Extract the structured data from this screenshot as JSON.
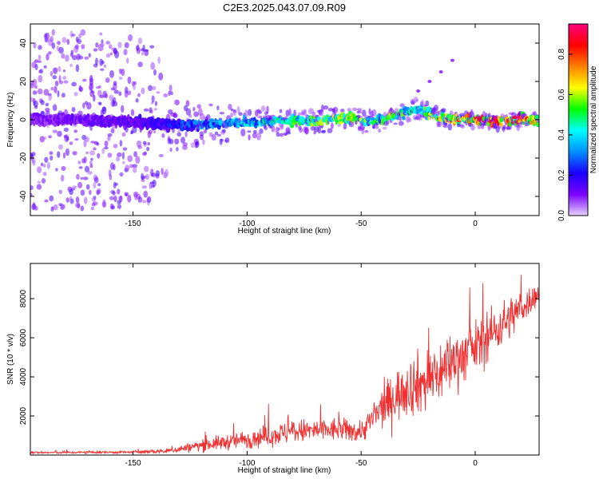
{
  "figure_title": "C2E3.2025.043.07.09.R09",
  "chart_data": [
    {
      "type": "heatmap",
      "title": "",
      "xlabel": "Height of straight line (km)",
      "ylabel": "Frequency (Hz)",
      "xlim": [
        -195,
        28
      ],
      "ylim": [
        -50,
        50
      ],
      "xticks": [
        -150,
        -100,
        -50,
        0
      ],
      "yticks": [
        -40,
        -20,
        0,
        20,
        40
      ],
      "colorbar": {
        "label": "Normalized spectral amplitude",
        "range": [
          0,
          0.95
        ],
        "ticks": [
          "0.0",
          "0.2",
          "0.4",
          "0.6",
          "0.8"
        ],
        "tick_values": [
          0,
          0.2,
          0.4,
          0.6,
          0.8
        ],
        "colormap": [
          "#e8d4ff",
          "#7a00ff",
          "#1a00ff",
          "#0090ff",
          "#00ffff",
          "#00ff00",
          "#ffff00",
          "#ff8000",
          "#ff0000",
          "#ff0080"
        ]
      },
      "ridge": {
        "x": [
          -195,
          -175,
          -150,
          -130,
          -110,
          -90,
          -70,
          -55,
          -45,
          -35,
          -25,
          -20,
          -10,
          0,
          10,
          20,
          28
        ],
        "frequency": [
          0,
          0,
          -1,
          -3,
          -2,
          -1,
          0,
          1,
          -1,
          2,
          6,
          3,
          0,
          0,
          -1,
          0,
          0
        ],
        "peak_amplitude": [
          0.1,
          0.12,
          0.15,
          0.25,
          0.35,
          0.45,
          0.55,
          0.6,
          0.5,
          0.55,
          0.45,
          0.55,
          0.7,
          0.8,
          0.85,
          0.8,
          0.75
        ]
      },
      "spread_hz": {
        "x": [
          -195,
          -150,
          -140,
          -130,
          -100,
          -50,
          0,
          28
        ],
        "value": [
          48,
          45,
          40,
          12,
          8,
          6,
          4,
          4
        ]
      },
      "side_branch": {
        "x": [
          -25,
          -20,
          -15,
          -10
        ],
        "frequency": [
          15,
          20,
          25,
          31
        ]
      }
    },
    {
      "type": "line",
      "title": "",
      "xlabel": "Height of straight line (km)",
      "ylabel": "SNR (10 * v/v)",
      "xlim": [
        -195,
        28
      ],
      "ylim": [
        0,
        9800
      ],
      "xticks": [
        -150,
        -100,
        -50,
        0
      ],
      "yticks": [
        2000,
        4000,
        6000,
        8000
      ],
      "color": "#f03030",
      "envelope": {
        "x": [
          -195,
          -150,
          -135,
          -120,
          -100,
          -80,
          -60,
          -50,
          -40,
          -30,
          -20,
          -10,
          0,
          10,
          20,
          28
        ],
        "mean": [
          120,
          150,
          200,
          500,
          800,
          1200,
          1300,
          1200,
          2500,
          3500,
          3800,
          4800,
          5500,
          6500,
          7500,
          8300
        ],
        "spread": [
          80,
          100,
          200,
          450,
          700,
          900,
          900,
          800,
          1600,
          2200,
          2500,
          2200,
          2000,
          1800,
          1400,
          800
        ]
      }
    }
  ]
}
